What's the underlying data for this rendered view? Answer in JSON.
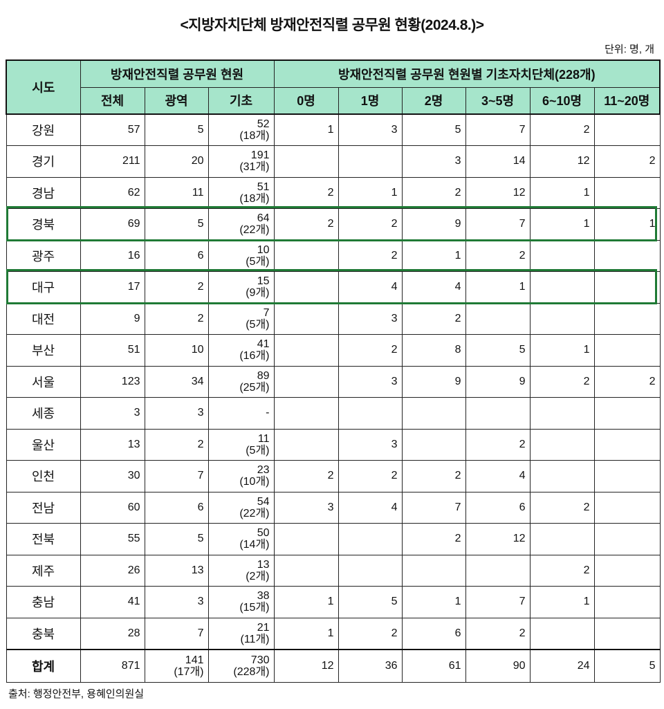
{
  "title": "<지방자치단체 방재안전직렬 공무원 현황(2024.8.)>",
  "unit": "단위: 명, 개",
  "header": {
    "region": "시도",
    "group1": "방재안전직렬 공무원 현원",
    "group2": "방재안전직렬 공무원 현원별 기초자치단체(228개)",
    "cols": [
      "전체",
      "광역",
      "기초",
      "0명",
      "1명",
      "2명",
      "3~5명",
      "6~10명",
      "11~20명"
    ]
  },
  "rows": [
    {
      "region": "강원",
      "total": "57",
      "metro": "5",
      "basic": "52",
      "basic_count": "(18개)",
      "c0": "1",
      "c1": "3",
      "c2": "5",
      "c35": "7",
      "c610": "2",
      "c1120": ""
    },
    {
      "region": "경기",
      "total": "211",
      "metro": "20",
      "basic": "191",
      "basic_count": "(31개)",
      "c0": "",
      "c1": "",
      "c2": "3",
      "c35": "14",
      "c610": "12",
      "c1120": "2"
    },
    {
      "region": "경남",
      "total": "62",
      "metro": "11",
      "basic": "51",
      "basic_count": "(18개)",
      "c0": "2",
      "c1": "1",
      "c2": "2",
      "c35": "12",
      "c610": "1",
      "c1120": ""
    },
    {
      "region": "경북",
      "total": "69",
      "metro": "5",
      "basic": "64",
      "basic_count": "(22개)",
      "c0": "2",
      "c1": "2",
      "c2": "9",
      "c35": "7",
      "c610": "1",
      "c1120": "1",
      "highlight": true
    },
    {
      "region": "광주",
      "total": "16",
      "metro": "6",
      "basic": "10",
      "basic_count": "(5개)",
      "c0": "",
      "c1": "2",
      "c2": "1",
      "c35": "2",
      "c610": "",
      "c1120": ""
    },
    {
      "region": "대구",
      "total": "17",
      "metro": "2",
      "basic": "15",
      "basic_count": "(9개)",
      "c0": "",
      "c1": "4",
      "c2": "4",
      "c35": "1",
      "c610": "",
      "c1120": "",
      "highlight": true
    },
    {
      "region": "대전",
      "total": "9",
      "metro": "2",
      "basic": "7",
      "basic_count": "(5개)",
      "c0": "",
      "c1": "3",
      "c2": "2",
      "c35": "",
      "c610": "",
      "c1120": ""
    },
    {
      "region": "부산",
      "total": "51",
      "metro": "10",
      "basic": "41",
      "basic_count": "(16개)",
      "c0": "",
      "c1": "2",
      "c2": "8",
      "c35": "5",
      "c610": "1",
      "c1120": ""
    },
    {
      "region": "서울",
      "total": "123",
      "metro": "34",
      "basic": "89",
      "basic_count": "(25개)",
      "c0": "",
      "c1": "3",
      "c2": "9",
      "c35": "9",
      "c610": "2",
      "c1120": "2"
    },
    {
      "region": "세종",
      "total": "3",
      "metro": "3",
      "basic": "-",
      "basic_count": "",
      "c0": "",
      "c1": "",
      "c2": "",
      "c35": "",
      "c610": "",
      "c1120": ""
    },
    {
      "region": "울산",
      "total": "13",
      "metro": "2",
      "basic": "11",
      "basic_count": "(5개)",
      "c0": "",
      "c1": "3",
      "c2": "",
      "c35": "2",
      "c610": "",
      "c1120": ""
    },
    {
      "region": "인천",
      "total": "30",
      "metro": "7",
      "basic": "23",
      "basic_count": "(10개)",
      "c0": "2",
      "c1": "2",
      "c2": "2",
      "c35": "4",
      "c610": "",
      "c1120": ""
    },
    {
      "region": "전남",
      "total": "60",
      "metro": "6",
      "basic": "54",
      "basic_count": "(22개)",
      "c0": "3",
      "c1": "4",
      "c2": "7",
      "c35": "6",
      "c610": "2",
      "c1120": ""
    },
    {
      "region": "전북",
      "total": "55",
      "metro": "5",
      "basic": "50",
      "basic_count": "(14개)",
      "c0": "",
      "c1": "",
      "c2": "2",
      "c35": "12",
      "c610": "",
      "c1120": ""
    },
    {
      "region": "제주",
      "total": "26",
      "metro": "13",
      "basic": "13",
      "basic_count": "(2개)",
      "c0": "",
      "c1": "",
      "c2": "",
      "c35": "",
      "c610": "2",
      "c1120": ""
    },
    {
      "region": "충남",
      "total": "41",
      "metro": "3",
      "basic": "38",
      "basic_count": "(15개)",
      "c0": "1",
      "c1": "5",
      "c2": "1",
      "c35": "7",
      "c610": "1",
      "c1120": ""
    },
    {
      "region": "충북",
      "total": "28",
      "metro": "7",
      "basic": "21",
      "basic_count": "(11개)",
      "c0": "1",
      "c1": "2",
      "c2": "6",
      "c35": "2",
      "c610": "",
      "c1120": ""
    }
  ],
  "total_row": {
    "region": "합계",
    "total": "871",
    "metro": "141",
    "metro_count": "(17개)",
    "basic": "730",
    "basic_count": "(228개)",
    "c0": "12",
    "c1": "36",
    "c2": "61",
    "c35": "90",
    "c610": "24",
    "c1120": "5"
  },
  "highlight_color": "#1f7a35",
  "header_color": "#a6e5cb",
  "source": "출처: 행정안전부, 용혜인의원실"
}
